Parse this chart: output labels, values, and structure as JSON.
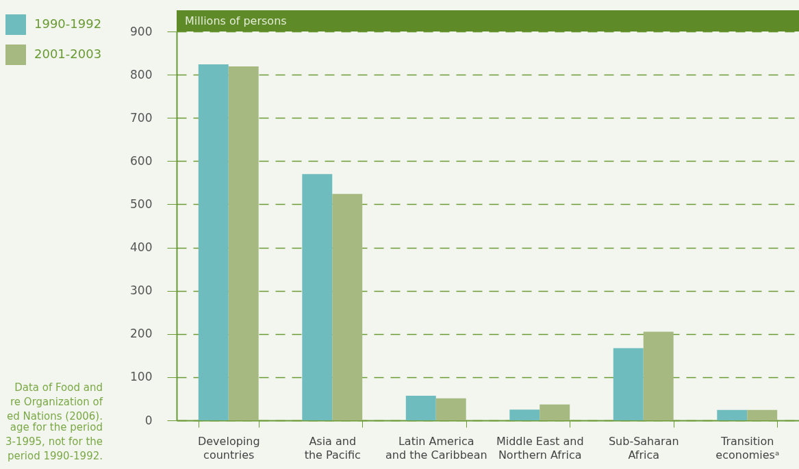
{
  "chart_data": {
    "type": "bar",
    "title": "Millions of persons",
    "categories": [
      "Developing countries",
      "Asia and the Pacific",
      "Latin America and the Caribbean",
      "Middle East and Northern Africa",
      "Sub-Saharan Africa",
      "Transition economiesᵃ"
    ],
    "series": [
      {
        "name": "1990-1992",
        "color": "#6fbcbe",
        "values": [
          824,
          570,
          57,
          25,
          167,
          24
        ]
      },
      {
        "name": "2001-2003",
        "color": "#a5b981",
        "values": [
          819,
          524,
          51,
          37,
          205,
          24
        ]
      }
    ],
    "ylim": [
      0,
      900
    ],
    "yticks": [
      0,
      100,
      200,
      300,
      400,
      500,
      600,
      700,
      800,
      900
    ],
    "grid": "y",
    "legend": "top left",
    "annotations": [
      "Data of Food and\nre Organization of\ned Nations (2006).",
      "age for the period\n3-1995, not for the\nperiod 1990-1992."
    ]
  }
}
